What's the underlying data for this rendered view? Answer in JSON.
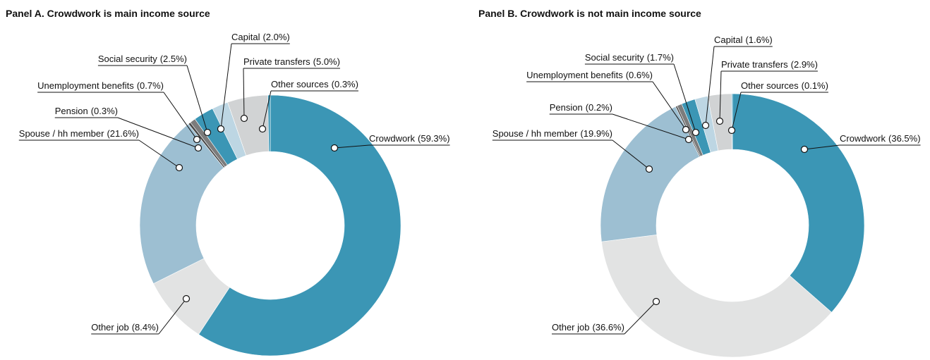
{
  "chart_data": [
    {
      "type": "donut",
      "title": "Panel A. Crowdwork is main income source",
      "categories": [
        "Crowdwork",
        "Other job",
        "Spouse / hh member",
        "Pension",
        "Unemployment benefits",
        "Social security",
        "Capital",
        "Private transfers",
        "Other sources"
      ],
      "values": [
        59.3,
        8.4,
        21.6,
        0.3,
        0.7,
        2.5,
        2.0,
        5.0,
        0.3
      ],
      "value_labels": [
        "(59.3%)",
        "(8.4%)",
        "(21.6%)",
        "(0.3%)",
        "(0.7%)",
        "(2.5%)",
        "(2.0%)",
        "(5.0%)",
        "(0.3%)"
      ],
      "colors": [
        "#3b96b5",
        "#e2e3e3",
        "#9dbfd2",
        "#4a4a4a",
        "#7c7c7c",
        "#3b96b5",
        "#bdd6e3",
        "#d1d3d4",
        "#3b96b5"
      ]
    },
    {
      "type": "donut",
      "title": "Panel B. Crowdwork is not main income source",
      "categories": [
        "Crowdwork",
        "Other job",
        "Spouse / hh member",
        "Pension",
        "Unemployment benefits",
        "Social security",
        "Capital",
        "Private transfers",
        "Other sources"
      ],
      "values": [
        36.5,
        36.6,
        19.9,
        0.2,
        0.6,
        1.7,
        1.6,
        2.9,
        0.1
      ],
      "value_labels": [
        "(36.5%)",
        "(36.6%)",
        "(19.9%)",
        "(0.2%)",
        "(0.6%)",
        "(1.7%)",
        "(1.6%)",
        "(2.9%)",
        "(0.1%)"
      ],
      "colors": [
        "#3b96b5",
        "#e2e3e3",
        "#9dbfd2",
        "#4a4a4a",
        "#7c7c7c",
        "#3b96b5",
        "#bdd6e3",
        "#d1d3d4",
        "#3b96b5"
      ]
    }
  ]
}
